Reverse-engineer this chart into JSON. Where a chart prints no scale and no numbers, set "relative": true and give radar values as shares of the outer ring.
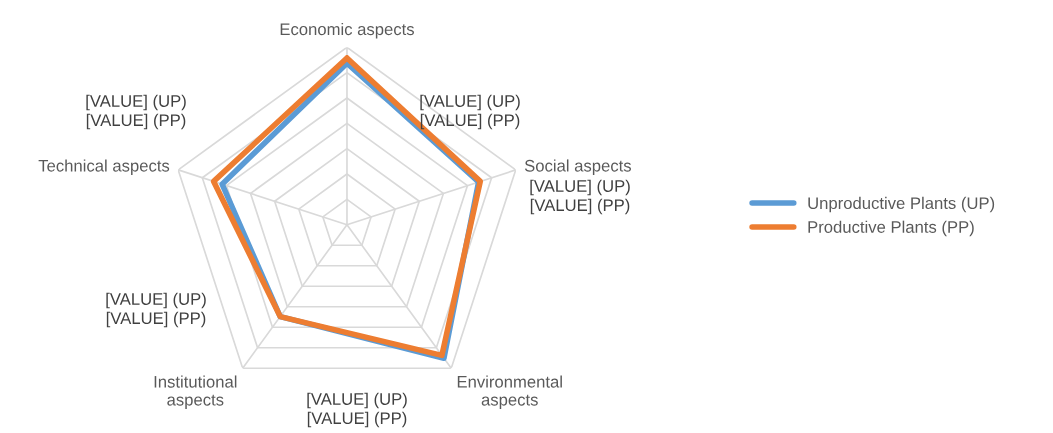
{
  "chart_data": {
    "type": "radar",
    "relative": true,
    "grid": true,
    "legend": "right",
    "categories": [
      "Economic aspects",
      "Social aspects",
      "Environmental\naspects",
      "Institutional\naspects",
      "Technical aspects"
    ],
    "series": [
      {
        "name": "Unproductive Plants (UP)",
        "color": "#5b9bd5",
        "values": [
          0.91,
          0.78,
          0.93,
          0.64,
          0.74
        ]
      },
      {
        "name": "Productive Plants (PP)",
        "color": "#ed7d31",
        "values": [
          0.94,
          0.79,
          0.91,
          0.64,
          0.79
        ]
      }
    ],
    "annotations": [
      "[VALUE] (UP)\n[VALUE] (PP)",
      "[VALUE] (UP)\n[VALUE] (PP)",
      "[VALUE] (UP)\n[VALUE] (PP)",
      "[VALUE] (UP)\n[VALUE] (PP)",
      "[VALUE] (UP)\n[VALUE] (PP)"
    ]
  }
}
